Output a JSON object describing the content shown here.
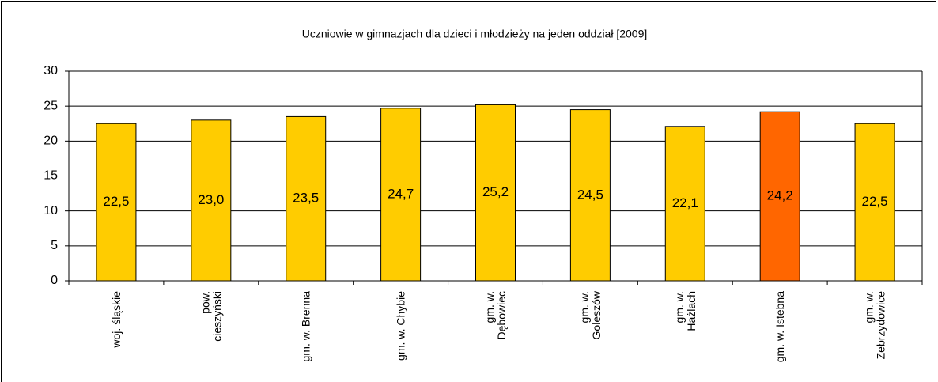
{
  "chart_data": {
    "type": "bar",
    "title": "Uczniowie w gimnazjach dla dzieci i młodzieży na jeden oddział [2009]",
    "categories": [
      "woj. śląskie",
      "pow.\ncieszyński",
      "gm. w. Brenna",
      "gm. w. Chybie",
      "gm. w.\nDębowiec",
      "gm. w.\nGoleszów",
      "gm. w.\nHażlach",
      "gm. w. Istebna",
      "gm. w.\nZebrzydowice"
    ],
    "values": [
      22.5,
      23.0,
      23.5,
      24.7,
      25.2,
      24.5,
      22.1,
      24.2,
      22.5
    ],
    "value_labels": [
      "22,5",
      "23,0",
      "23,5",
      "24,7",
      "25,2",
      "24,5",
      "22,1",
      "24,2",
      "22,5"
    ],
    "colors": [
      "#ffcc00",
      "#ffcc00",
      "#ffcc00",
      "#ffcc00",
      "#ffcc00",
      "#ffcc00",
      "#ffcc00",
      "#ff6600",
      "#ffcc00"
    ],
    "ylim": [
      0,
      30
    ],
    "yticks": [
      0,
      5,
      10,
      15,
      20,
      25,
      30
    ],
    "grid": true
  }
}
